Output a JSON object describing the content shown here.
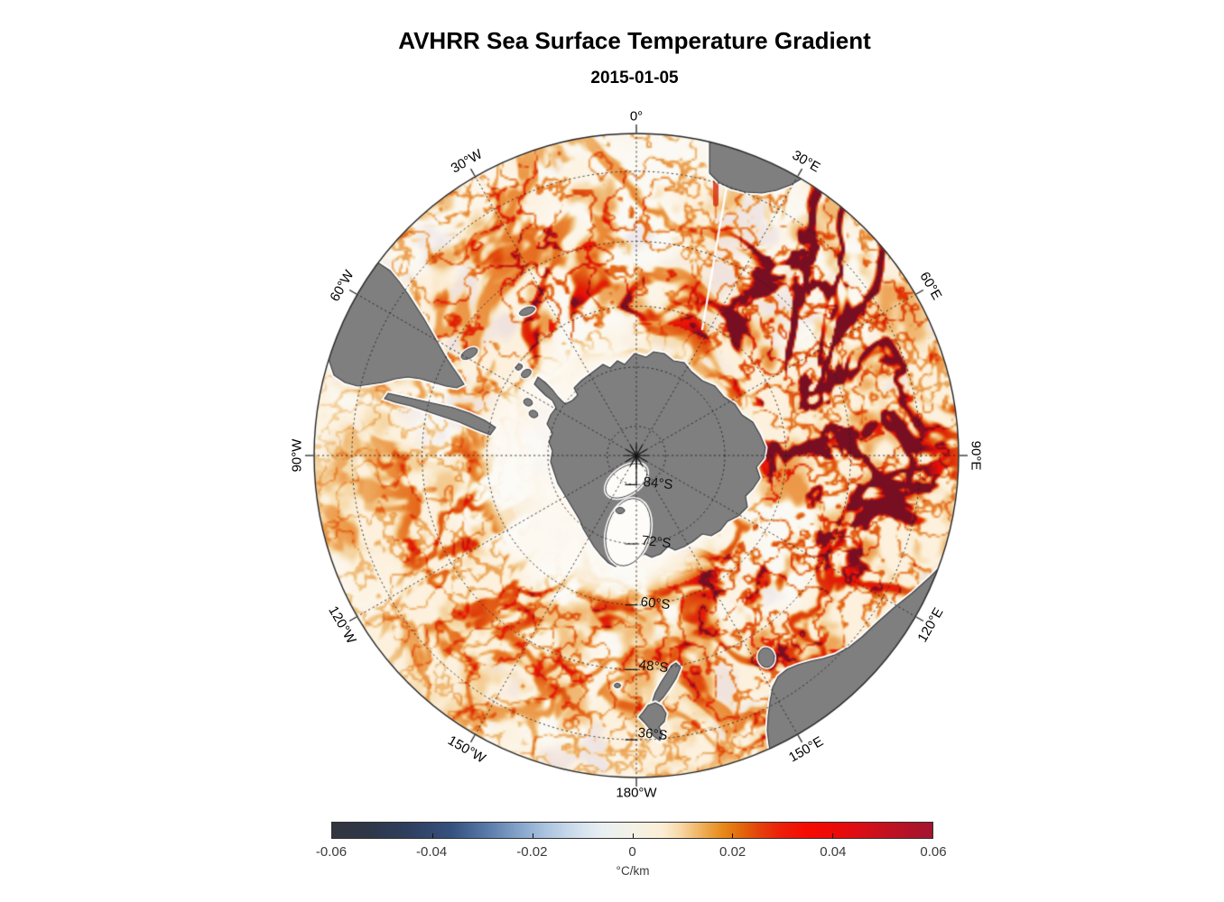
{
  "figure": {
    "title": "AVHRR Sea Surface Temperature Gradient",
    "subtitle": "2015-01-05"
  },
  "map": {
    "meridian_labels": [
      {
        "text": "0°"
      },
      {
        "text": "30°E"
      },
      {
        "text": "60°E"
      },
      {
        "text": "90°E"
      },
      {
        "text": "120°E"
      },
      {
        "text": "150°E"
      },
      {
        "text": "180°W"
      },
      {
        "text": "150°W"
      },
      {
        "text": "120°W"
      },
      {
        "text": "90°W"
      },
      {
        "text": "60°W"
      },
      {
        "text": "30°W"
      }
    ],
    "parallel_labels": [
      {
        "text": "84°S"
      },
      {
        "text": "72°S"
      },
      {
        "text": "60°S"
      },
      {
        "text": "48°S"
      },
      {
        "text": "36°S"
      }
    ],
    "colors": {
      "land": "#7f7f7f",
      "land_outline": "#3d3d3d",
      "ice_shelf": "#fdfcf8",
      "sea_background": "#fdf1de",
      "graticule": "#232323",
      "filament_strong": "#ee1006",
      "filament_dark": "#8c1020",
      "filament_mid": "#e26a0e",
      "filament_weak": "#f0b878",
      "swath_gap": "#ffffff"
    }
  },
  "colorbar": {
    "tick_labels": [
      "-0.06",
      "-0.04",
      "-0.02",
      "0",
      "0.02",
      "0.04",
      "0.06"
    ],
    "unit": "°C/km",
    "gradient": [
      [
        0.0,
        "#33363e"
      ],
      [
        0.06,
        "#2e3748"
      ],
      [
        0.13,
        "#2f3f60"
      ],
      [
        0.2,
        "#36517f"
      ],
      [
        0.26,
        "#5a7cab"
      ],
      [
        0.31,
        "#84a3ca"
      ],
      [
        0.36,
        "#aec6e0"
      ],
      [
        0.41,
        "#d2e0ed"
      ],
      [
        0.45,
        "#e8eff2"
      ],
      [
        0.5,
        "#f4f1e6"
      ],
      [
        0.55,
        "#fbeed6"
      ],
      [
        0.58,
        "#f7d8a6"
      ],
      [
        0.62,
        "#eeab50"
      ],
      [
        0.65,
        "#e78a1a"
      ],
      [
        0.68,
        "#e2690b"
      ],
      [
        0.71,
        "#e4430c"
      ],
      [
        0.75,
        "#ed1e0a"
      ],
      [
        0.79,
        "#f60b03"
      ],
      [
        0.83,
        "#ee0a08"
      ],
      [
        0.88,
        "#db0d14"
      ],
      [
        0.92,
        "#c5101f"
      ],
      [
        0.96,
        "#b31228"
      ],
      [
        1.0,
        "#a3142f"
      ]
    ]
  }
}
